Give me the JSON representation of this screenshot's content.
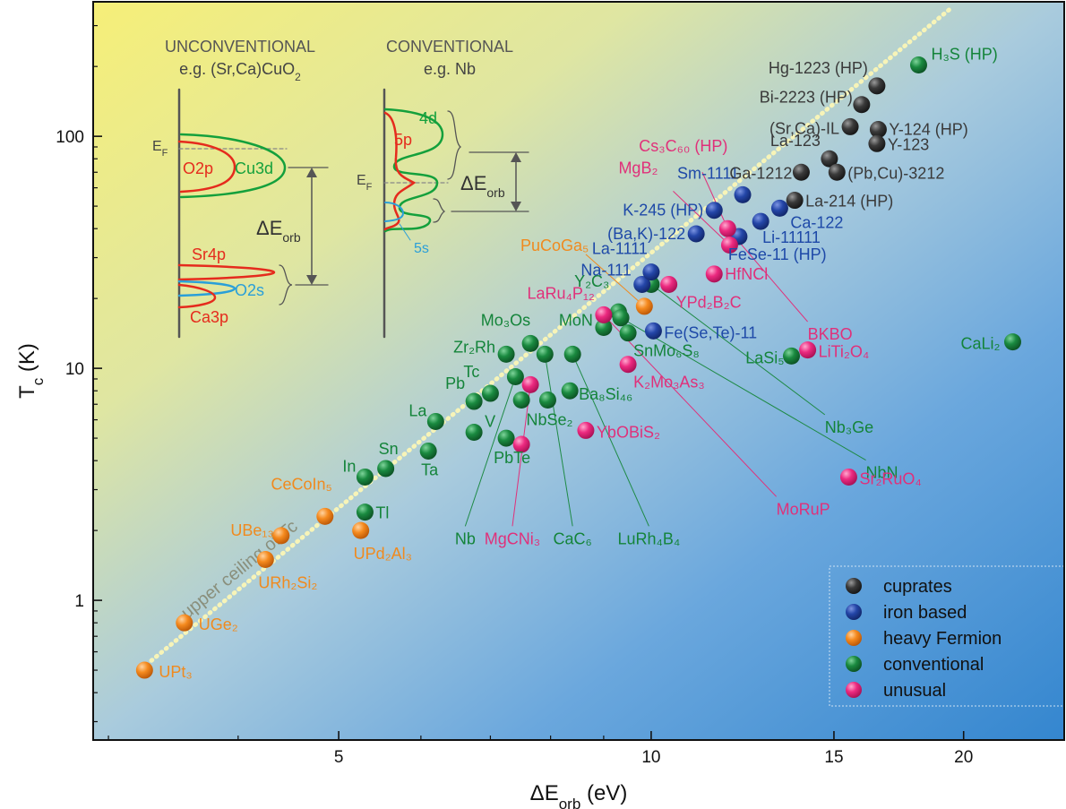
{
  "chart_data": {
    "type": "scatter",
    "xlabel": "ΔE",
    "xlabel_sub": "orb",
    "xlabel_unit": " (eV)",
    "ylabel": "T",
    "ylabel_sub": "c",
    "ylabel_unit": " (K)",
    "x_scale": "log",
    "y_scale": "log",
    "xlim": [
      2.9,
      25.0
    ],
    "ylim": [
      0.25,
      380
    ],
    "x_ticks": [
      {
        "v": 5,
        "label": "5"
      },
      {
        "v": 10,
        "label": "10"
      },
      {
        "v": 15,
        "label": "15"
      },
      {
        "v": 20,
        "label": "20"
      }
    ],
    "y_ticks": [
      {
        "v": 1,
        "label": "1"
      },
      {
        "v": 10,
        "label": "10"
      },
      {
        "v": 100,
        "label": "100"
      }
    ],
    "ceiling_label": "upper ceiling of Tc",
    "ceiling_line": [
      [
        3.3,
        0.55
      ],
      [
        19.5,
        360
      ]
    ],
    "legend": {
      "position": "bottom-right",
      "items": [
        {
          "label": "cuprates",
          "color": "#2b2b2b"
        },
        {
          "label": "iron based",
          "color": "#1c3f9e"
        },
        {
          "label": "heavy Fermion",
          "color": "#f07d12"
        },
        {
          "label": "conventional",
          "color": "#14843a"
        },
        {
          "label": "unusual",
          "color": "#e8237a"
        }
      ]
    },
    "label_colors": {
      "cuprates": "#3a3a3a",
      "iron": "#1e49a8",
      "heavy": "#f08a1e",
      "conventional": "#14843a",
      "unusual": "#e0307a"
    },
    "points": [
      {
        "label": "UPt₃",
        "x": 3.25,
        "y": 0.5,
        "cat": "heavy",
        "anchor": "start",
        "dx": 16,
        "dy": 8
      },
      {
        "label": "UGe₂",
        "x": 3.55,
        "y": 0.8,
        "cat": "heavy",
        "anchor": "start",
        "dx": 16,
        "dy": 8
      },
      {
        "label": "URh₂Si₂",
        "x": 4.25,
        "y": 1.5,
        "cat": "heavy",
        "anchor": "start",
        "dx": -8,
        "dy": 32
      },
      {
        "label": "UBe₁₃",
        "x": 4.4,
        "y": 1.9,
        "cat": "heavy",
        "anchor": "end",
        "dx": -8,
        "dy": 0
      },
      {
        "label": "CeCoIn₅",
        "x": 4.85,
        "y": 2.3,
        "cat": "heavy",
        "anchor": "end",
        "dx": 8,
        "dy": -30
      },
      {
        "label": "UPd₂Al₃",
        "x": 5.25,
        "y": 2.0,
        "cat": "heavy",
        "anchor": "start",
        "dx": -8,
        "dy": 32
      },
      {
        "label": "PuCoGa₅",
        "x": 9.85,
        "y": 18.5,
        "cat": "heavy",
        "anchor": "end",
        "dx": -62,
        "dy": -62
      },
      {
        "label": "In",
        "x": 5.3,
        "y": 3.4,
        "cat": "conventional",
        "anchor": "end",
        "dx": -10,
        "dy": -6
      },
      {
        "label": "Sn",
        "x": 5.55,
        "y": 3.7,
        "cat": "conventional",
        "anchor": "start",
        "dx": -8,
        "dy": -16
      },
      {
        "label": "Tl",
        "x": 5.3,
        "y": 2.4,
        "cat": "conventional",
        "anchor": "start",
        "dx": 12,
        "dy": 7
      },
      {
        "label": "Ta",
        "x": 6.1,
        "y": 4.4,
        "cat": "conventional",
        "anchor": "start",
        "dx": -8,
        "dy": 27
      },
      {
        "label": "La",
        "x": 6.2,
        "y": 5.9,
        "cat": "conventional",
        "anchor": "end",
        "dx": -10,
        "dy": -6
      },
      {
        "label": "V",
        "x": 6.75,
        "y": 5.3,
        "cat": "conventional",
        "anchor": "start",
        "dx": 12,
        "dy": -6
      },
      {
        "label": "Pb",
        "x": 6.75,
        "y": 7.2,
        "cat": "conventional",
        "anchor": "end",
        "dx": -10,
        "dy": -14
      },
      {
        "label": "Tc",
        "x": 7.0,
        "y": 7.8,
        "cat": "conventional",
        "anchor": "end",
        "dx": -12,
        "dy": -18
      },
      {
        "label": "Zr₂Rh",
        "x": 7.25,
        "y": 11.5,
        "cat": "conventional",
        "anchor": "end",
        "dx": -12,
        "dy": -2
      },
      {
        "label": "Mo₃Os",
        "x": 7.65,
        "y": 12.8,
        "cat": "conventional",
        "anchor": "end",
        "dx": 0,
        "dy": -20
      },
      {
        "label": "PbTe",
        "x": 7.25,
        "y": 5.0,
        "cat": "conventional",
        "anchor": "start",
        "dx": -14,
        "dy": 28
      },
      {
        "label": "",
        "x": 7.4,
        "y": 9.2,
        "cat": "conventional"
      },
      {
        "label": "",
        "x": 7.5,
        "y": 7.3,
        "cat": "conventional"
      },
      {
        "label": "",
        "x": 7.9,
        "y": 11.5,
        "cat": "conventional"
      },
      {
        "label": "NbSe₂",
        "x": 7.95,
        "y": 7.3,
        "cat": "conventional",
        "anchor": "start",
        "dx": -24,
        "dy": 28
      },
      {
        "label": "Ba₈Si₄₆",
        "x": 8.35,
        "y": 8.0,
        "cat": "conventional",
        "anchor": "start",
        "dx": 10,
        "dy": 10
      },
      {
        "label": "",
        "x": 8.4,
        "y": 11.5,
        "cat": "conventional"
      },
      {
        "label": "MoN",
        "x": 9.0,
        "y": 15.0,
        "cat": "conventional",
        "anchor": "end",
        "dx": -12,
        "dy": -2
      },
      {
        "label": "Y₂C₃",
        "x": 9.3,
        "y": 17.5,
        "cat": "conventional",
        "anchor": "end",
        "dx": -10,
        "dy": -28
      },
      {
        "label": "",
        "x": 9.35,
        "y": 16.5,
        "cat": "conventional"
      },
      {
        "label": "SnMo₆S₈",
        "x": 9.5,
        "y": 14.2,
        "cat": "conventional",
        "anchor": "start",
        "dx": 6,
        "dy": 26
      },
      {
        "label": "",
        "x": 10.0,
        "y": 23.0,
        "cat": "conventional"
      },
      {
        "label": "LaSi₅",
        "x": 13.65,
        "y": 11.3,
        "cat": "conventional",
        "anchor": "end",
        "dx": -8,
        "dy": 8
      },
      {
        "label": "H₃S (HP)",
        "x": 18.1,
        "y": 203.0,
        "cat": "conventional",
        "anchor": "start",
        "dx": 14,
        "dy": -6
      },
      {
        "label": "CaLi₂",
        "x": 22.3,
        "y": 13.0,
        "cat": "conventional",
        "anchor": "end",
        "dx": -14,
        "dy": 8
      },
      {
        "label": "Na-111",
        "x": 9.8,
        "y": 23.0,
        "cat": "iron",
        "anchor": "end",
        "dx": -12,
        "dy": -10
      },
      {
        "label": "La-1111",
        "x": 10.0,
        "y": 26.0,
        "cat": "iron",
        "anchor": "end",
        "dx": -4,
        "dy": -20
      },
      {
        "label": "Fe(Se,Te)-11",
        "x": 10.05,
        "y": 14.5,
        "cat": "iron",
        "anchor": "start",
        "dx": 12,
        "dy": 8
      },
      {
        "label": "(Ba,K)-122",
        "x": 11.05,
        "y": 38.0,
        "cat": "iron",
        "anchor": "end",
        "dx": -12,
        "dy": 6
      },
      {
        "label": "K-245 (HP)",
        "x": 11.5,
        "y": 48.0,
        "cat": "iron",
        "anchor": "end",
        "dx": -12,
        "dy": 6
      },
      {
        "label": "Sm-1111",
        "x": 12.25,
        "y": 56.0,
        "cat": "iron",
        "anchor": "end",
        "dx": -4,
        "dy": -18
      },
      {
        "label": "FeSe-11 (HP)",
        "x": 12.15,
        "y": 37.0,
        "cat": "iron",
        "anchor": "start",
        "dx": -12,
        "dy": 26
      },
      {
        "label": "Li-11111",
        "x": 12.75,
        "y": 43.0,
        "cat": "iron",
        "anchor": "start",
        "dx": 2,
        "dy": 24
      },
      {
        "label": "Ca-122",
        "x": 13.3,
        "y": 49.0,
        "cat": "iron",
        "anchor": "start",
        "dx": 12,
        "dy": 22
      },
      {
        "label": "Hg-1223 (HP)",
        "x": 16.5,
        "y": 165.0,
        "cat": "cuprates",
        "anchor": "end",
        "dx": -10,
        "dy": -14
      },
      {
        "label": "Bi-2223 (HP)",
        "x": 15.95,
        "y": 137.0,
        "cat": "cuprates",
        "anchor": "end",
        "dx": -10,
        "dy": -2
      },
      {
        "label": "(Sr,Ca)-IL",
        "x": 15.55,
        "y": 110.0,
        "cat": "cuprates",
        "anchor": "end",
        "dx": -12,
        "dy": 8
      },
      {
        "label": "Y-124 (HP)",
        "x": 16.55,
        "y": 107.0,
        "cat": "cuprates",
        "anchor": "start",
        "dx": 12,
        "dy": 6
      },
      {
        "label": "Y-123",
        "x": 16.5,
        "y": 93.0,
        "cat": "cuprates",
        "anchor": "start",
        "dx": 12,
        "dy": 7
      },
      {
        "label": "La-123",
        "x": 14.85,
        "y": 80.0,
        "cat": "cuprates",
        "anchor": "end",
        "dx": -10,
        "dy": -14
      },
      {
        "label": "Ga-1212",
        "x": 13.95,
        "y": 70.0,
        "cat": "cuprates",
        "anchor": "end",
        "dx": -10,
        "dy": 7
      },
      {
        "label": "(Pb,Cu)-3212",
        "x": 15.1,
        "y": 70.0,
        "cat": "cuprates",
        "anchor": "start",
        "dx": 12,
        "dy": 7
      },
      {
        "label": "La-214 (HP)",
        "x": 13.75,
        "y": 53.0,
        "cat": "cuprates",
        "anchor": "start",
        "dx": 12,
        "dy": 7
      },
      {
        "label": "Cs₃C₆₀ (HP)",
        "x": 11.85,
        "y": 40.0,
        "cat": "unusual",
        "anchor": "end",
        "dx": 0,
        "dy": -86
      },
      {
        "label": "MgB₂",
        "x": 11.9,
        "y": 34.0,
        "cat": "unusual",
        "anchor": "end",
        "dx": -80,
        "dy": -80
      },
      {
        "label": "HfNCl",
        "x": 11.5,
        "y": 25.5,
        "cat": "unusual",
        "anchor": "start",
        "dx": 12,
        "dy": 6
      },
      {
        "label": "YPd₂B₂C",
        "x": 10.4,
        "y": 23.0,
        "cat": "unusual",
        "anchor": "start",
        "dx": 8,
        "dy": 26
      },
      {
        "label": "LaRu₄P₁₂",
        "x": 9.0,
        "y": 17.0,
        "cat": "unusual",
        "anchor": "end",
        "dx": -10,
        "dy": -18
      },
      {
        "label": "K₂Mo₃As₃",
        "x": 9.5,
        "y": 10.4,
        "cat": "unusual",
        "anchor": "start",
        "dx": 6,
        "dy": 26
      },
      {
        "label": "",
        "x": 7.65,
        "y": 8.5,
        "cat": "unusual"
      },
      {
        "label": "YbOBiS₂",
        "x": 8.65,
        "y": 5.4,
        "cat": "unusual",
        "anchor": "start",
        "dx": 12,
        "dy": 8
      },
      {
        "label": "",
        "x": 7.5,
        "y": 4.7,
        "cat": "unusual"
      },
      {
        "label": "LiTi₂O₄",
        "x": 14.15,
        "y": 12.0,
        "cat": "unusual",
        "anchor": "start",
        "dx": 12,
        "dy": 8
      },
      {
        "label": "Sr₂RuO₄",
        "x": 15.5,
        "y": 3.4,
        "cat": "unusual",
        "anchor": "start",
        "dx": 12,
        "dy": 8
      }
    ],
    "callouts": [
      {
        "label": "Nb",
        "cat": "conventional",
        "fx": 7.4,
        "fy": 9.2,
        "tx": 6.62,
        "ty": 2.05,
        "anchor": "middle"
      },
      {
        "label": "CaC₆",
        "cat": "conventional",
        "fx": 7.9,
        "fy": 11.5,
        "tx": 8.4,
        "ty": 2.05,
        "anchor": "middle"
      },
      {
        "label": "LuRh₄B₄",
        "cat": "conventional",
        "fx": 8.4,
        "fy": 11.5,
        "tx": 9.95,
        "ty": 2.05,
        "anchor": "middle"
      },
      {
        "label": "NbN",
        "cat": "conventional",
        "fx": 9.35,
        "fy": 16.5,
        "tx": 16.1,
        "ty": 3.95,
        "anchor": "start"
      },
      {
        "label": "Nb₃Ge",
        "cat": "conventional",
        "fx": 10.0,
        "fy": 23.0,
        "tx": 14.7,
        "ty": 6.2,
        "anchor": "start"
      },
      {
        "label": "MgCNi₃",
        "cat": "unusual",
        "fx": 7.65,
        "fy": 8.5,
        "tx": 7.35,
        "ty": 2.05,
        "anchor": "middle"
      },
      {
        "label": "MoRuP",
        "cat": "unusual",
        "fx": 9.0,
        "fy": 17.0,
        "tx": 13.2,
        "ty": 2.75,
        "anchor": "start"
      },
      {
        "label": "BKBO",
        "cat": "unusual",
        "fx": 11.85,
        "fy": 40.0,
        "tx": 14.15,
        "ty": 15.6,
        "anchor": "start"
      }
    ],
    "leaders": [
      {
        "cat": "unusual",
        "fx": 11.85,
        "fy": 40.0,
        "tx": 11.2,
        "ty": 70.0
      },
      {
        "cat": "unusual",
        "fx": 11.9,
        "fy": 34.0,
        "tx": 10.5,
        "ty": 58.0
      },
      {
        "cat": "heavy",
        "fx": 9.85,
        "fy": 18.5,
        "tx": 8.65,
        "ty": 31.0
      }
    ],
    "insets": {
      "unconventional": {
        "title": "UNCONVENTIONAL",
        "example_prefix": "e.g. (Sr,Ca)CuO",
        "example_sub": "2",
        "ef": "E",
        "ef_sub": "F",
        "de": "ΔE",
        "de_sub": "orb",
        "bands": [
          {
            "label": "O2p",
            "color": "#e52b1d"
          },
          {
            "label": "Cu3d",
            "color": "#14a03c"
          },
          {
            "label": "Sr4p",
            "color": "#e52b1d"
          },
          {
            "label": "O2s",
            "color": "#2a9fd8"
          },
          {
            "label": "Ca3p",
            "color": "#e52b1d"
          }
        ]
      },
      "conventional": {
        "title": "CONVENTIONAL",
        "example": "e.g. Nb",
        "ef": "E",
        "ef_sub": "F",
        "de": "ΔE",
        "de_sub": "orb",
        "bands": [
          {
            "label": "4d",
            "color": "#14a03c"
          },
          {
            "label": "5p",
            "color": "#e52b1d"
          },
          {
            "label": "5s",
            "color": "#2a9fd8"
          }
        ]
      }
    }
  }
}
